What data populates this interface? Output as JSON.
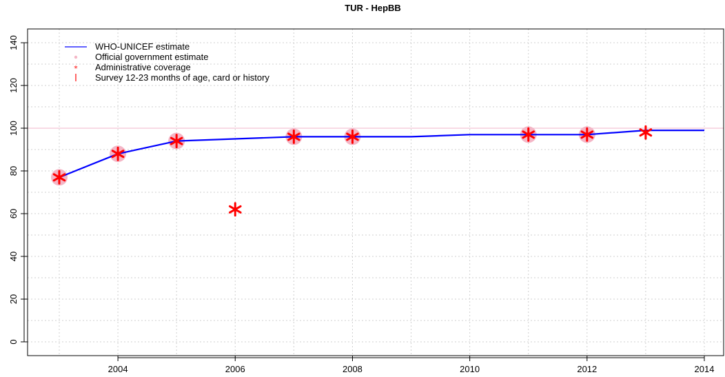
{
  "chart_data": {
    "type": "line",
    "title": "TUR  -  HepBB",
    "xlabel": "",
    "ylabel": "",
    "xlim": [
      2003,
      2014
    ],
    "ylim": [
      0,
      140
    ],
    "x_ticks": [
      "2004",
      "2006",
      "2008",
      "2010",
      "2012",
      "2014"
    ],
    "y_ticks": [
      "0",
      "20",
      "40",
      "60",
      "80",
      "100",
      "120",
      "140"
    ],
    "grid": true,
    "legend_position": "top-left",
    "legend": [
      "WHO-UNICEF estimate",
      "Official government estimate",
      "Administrative coverage",
      "Survey 12-23 months of age, card or history"
    ],
    "reference_line": {
      "y": 100,
      "color": "#f0b6c8"
    },
    "series": [
      {
        "name": "WHO-UNICEF estimate",
        "kind": "line",
        "color": "#0000ff",
        "points": [
          [
            2003,
            77
          ],
          [
            2004,
            88
          ],
          [
            2005,
            94
          ],
          [
            2006,
            95
          ],
          [
            2007,
            96
          ],
          [
            2008,
            96
          ],
          [
            2009,
            96
          ],
          [
            2010,
            97
          ],
          [
            2011,
            97
          ],
          [
            2012,
            97
          ],
          [
            2013,
            99
          ],
          [
            2014,
            99
          ]
        ]
      },
      {
        "name": "Official government estimate",
        "kind": "circle",
        "color": "#f4b6c6",
        "points": [
          [
            2003,
            77
          ],
          [
            2004,
            88
          ],
          [
            2005,
            94
          ],
          [
            2007,
            96
          ],
          [
            2008,
            96
          ],
          [
            2011,
            97
          ],
          [
            2012,
            97
          ]
        ]
      },
      {
        "name": "Administrative coverage",
        "kind": "asterisk",
        "color": "#ff0000",
        "points": [
          [
            2003,
            77
          ],
          [
            2004,
            88
          ],
          [
            2005,
            94
          ],
          [
            2006,
            62
          ],
          [
            2007,
            96
          ],
          [
            2008,
            96
          ],
          [
            2011,
            97
          ],
          [
            2012,
            97
          ],
          [
            2013,
            98
          ]
        ]
      }
    ]
  }
}
